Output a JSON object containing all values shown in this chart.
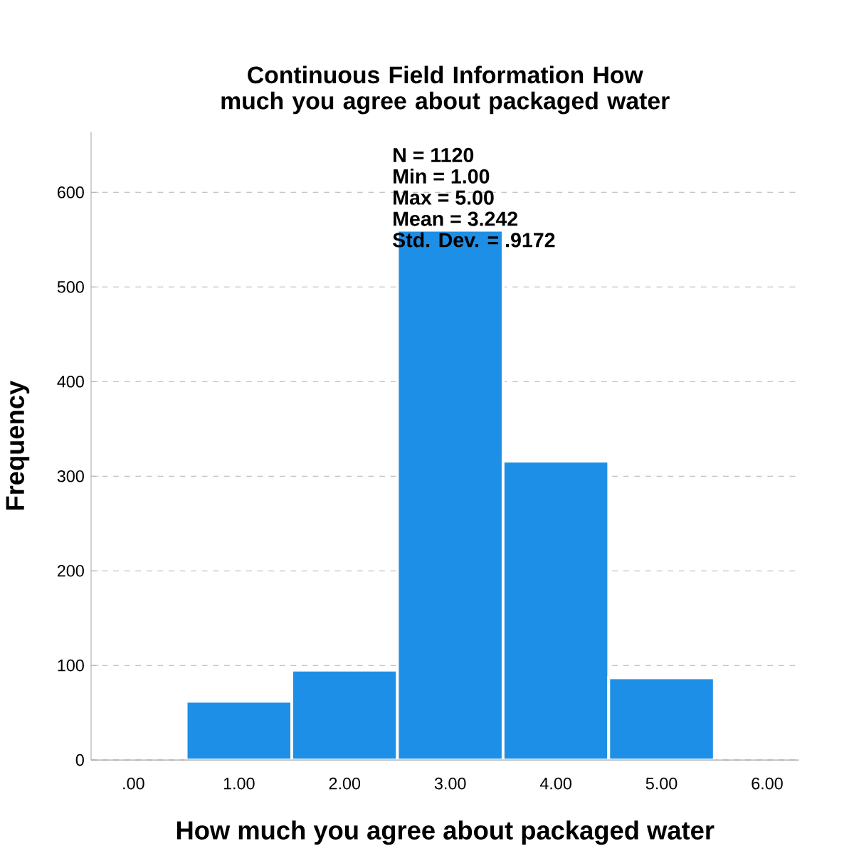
{
  "chart_data": {
    "type": "histogram",
    "title": "Continuous Field Information How much you agree about packaged water",
    "xlabel": "How much you agree about packaged water",
    "ylabel": "Frequency",
    "bins": [
      0.5,
      1.5,
      2.5,
      3.5,
      4.5,
      5.5
    ],
    "values": [
      62,
      95,
      560,
      316,
      87
    ],
    "color": "#1e8fe6",
    "xlim": [
      -0.4,
      6.3
    ],
    "ylim": [
      0,
      664
    ],
    "xticks": [
      {
        "value": 0,
        "label": ".00"
      },
      {
        "value": 1,
        "label": "1.00"
      },
      {
        "value": 2,
        "label": "2.00"
      },
      {
        "value": 3,
        "label": "3.00"
      },
      {
        "value": 4,
        "label": "4.00"
      },
      {
        "value": 5,
        "label": "5.00"
      },
      {
        "value": 6,
        "label": "6.00"
      }
    ],
    "yticks": [
      0,
      100,
      200,
      300,
      400,
      500,
      600
    ],
    "grid": "y",
    "annotations": [
      "N = 1120",
      "Min = 1.00",
      "Max = 5.00",
      "Mean = 3.242",
      "Std. Dev. = .9172"
    ]
  }
}
